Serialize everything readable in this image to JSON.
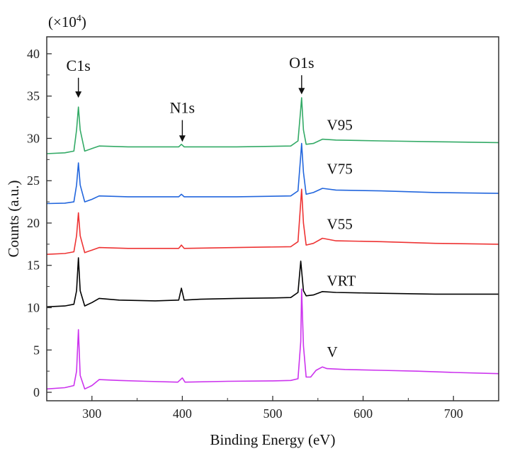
{
  "chart_data": {
    "type": "line",
    "title": "",
    "xlabel": "Binding Energy  (eV)",
    "ylabel": "Counts (a.u.)",
    "y_multiplier": "(×10",
    "y_multiplier_exp": "4",
    "y_multiplier_close": ")",
    "xlim": [
      250,
      750
    ],
    "ylim": [
      -1,
      42
    ],
    "x_ticks": [
      300,
      400,
      500,
      600,
      700
    ],
    "y_ticks": [
      0,
      5,
      10,
      15,
      20,
      25,
      30,
      35,
      40
    ],
    "grid": false,
    "peak_annotations": [
      {
        "label": "C1s",
        "x": 285,
        "y": 38.0,
        "arrow_to": 34.8
      },
      {
        "label": "N1s",
        "x": 400,
        "y": 33.0,
        "arrow_to": 29.6
      },
      {
        "label": "O1s",
        "x": 532,
        "y": 38.3,
        "arrow_to": 35.2
      }
    ],
    "series": [
      {
        "name": "V",
        "color": "#cc33ee",
        "label_x": 560,
        "label_y": 4.2,
        "points": [
          [
            250,
            0.4
          ],
          [
            270,
            0.55
          ],
          [
            280,
            0.8
          ],
          [
            283,
            2.5
          ],
          [
            285,
            7.4
          ],
          [
            287,
            2.0
          ],
          [
            292,
            0.4
          ],
          [
            300,
            0.8
          ],
          [
            308,
            1.5
          ],
          [
            330,
            1.4
          ],
          [
            360,
            1.3
          ],
          [
            395,
            1.2
          ],
          [
            400,
            1.7
          ],
          [
            403,
            1.2
          ],
          [
            450,
            1.3
          ],
          [
            500,
            1.35
          ],
          [
            520,
            1.4
          ],
          [
            528,
            1.6
          ],
          [
            531,
            6.0
          ],
          [
            532,
            12.2
          ],
          [
            534,
            5.5
          ],
          [
            537,
            1.8
          ],
          [
            542,
            1.8
          ],
          [
            548,
            2.6
          ],
          [
            555,
            3.0
          ],
          [
            560,
            2.8
          ],
          [
            580,
            2.7
          ],
          [
            620,
            2.6
          ],
          [
            660,
            2.5
          ],
          [
            700,
            2.35
          ],
          [
            750,
            2.2
          ]
        ]
      },
      {
        "name": "VRT",
        "color": "#000000",
        "label_x": 560,
        "label_y": 12.6,
        "points": [
          [
            250,
            10.1
          ],
          [
            270,
            10.2
          ],
          [
            280,
            10.4
          ],
          [
            283,
            12.0
          ],
          [
            285,
            15.9
          ],
          [
            287,
            12.0
          ],
          [
            292,
            10.2
          ],
          [
            300,
            10.6
          ],
          [
            308,
            11.1
          ],
          [
            330,
            10.9
          ],
          [
            370,
            10.8
          ],
          [
            396,
            10.9
          ],
          [
            399,
            12.3
          ],
          [
            402,
            10.9
          ],
          [
            420,
            11.0
          ],
          [
            460,
            11.1
          ],
          [
            500,
            11.15
          ],
          [
            520,
            11.2
          ],
          [
            528,
            11.8
          ],
          [
            531,
            15.5
          ],
          [
            534,
            12.0
          ],
          [
            537,
            11.4
          ],
          [
            545,
            11.5
          ],
          [
            555,
            11.9
          ],
          [
            570,
            11.8
          ],
          [
            620,
            11.7
          ],
          [
            680,
            11.6
          ],
          [
            750,
            11.6
          ]
        ]
      },
      {
        "name": "V55",
        "color": "#ee3333",
        "label_x": 560,
        "label_y": 19.3,
        "points": [
          [
            250,
            16.3
          ],
          [
            270,
            16.4
          ],
          [
            280,
            16.6
          ],
          [
            283,
            18.5
          ],
          [
            285,
            21.2
          ],
          [
            287,
            18.5
          ],
          [
            292,
            16.5
          ],
          [
            300,
            16.8
          ],
          [
            308,
            17.1
          ],
          [
            340,
            17.0
          ],
          [
            396,
            17.0
          ],
          [
            399,
            17.4
          ],
          [
            402,
            17.0
          ],
          [
            460,
            17.1
          ],
          [
            520,
            17.2
          ],
          [
            528,
            17.8
          ],
          [
            531,
            22.5
          ],
          [
            532,
            24.0
          ],
          [
            534,
            20.0
          ],
          [
            537,
            17.4
          ],
          [
            545,
            17.6
          ],
          [
            555,
            18.2
          ],
          [
            570,
            17.9
          ],
          [
            620,
            17.8
          ],
          [
            680,
            17.6
          ],
          [
            750,
            17.5
          ]
        ]
      },
      {
        "name": "V75",
        "color": "#2266dd",
        "label_x": 560,
        "label_y": 25.8,
        "points": [
          [
            250,
            22.3
          ],
          [
            270,
            22.35
          ],
          [
            280,
            22.5
          ],
          [
            283,
            24.5
          ],
          [
            285,
            27.1
          ],
          [
            287,
            24.5
          ],
          [
            292,
            22.5
          ],
          [
            300,
            22.8
          ],
          [
            308,
            23.2
          ],
          [
            340,
            23.1
          ],
          [
            396,
            23.1
          ],
          [
            399,
            23.4
          ],
          [
            402,
            23.1
          ],
          [
            460,
            23.1
          ],
          [
            520,
            23.2
          ],
          [
            528,
            23.8
          ],
          [
            531,
            28.0
          ],
          [
            532,
            29.4
          ],
          [
            534,
            26.0
          ],
          [
            537,
            23.4
          ],
          [
            545,
            23.6
          ],
          [
            555,
            24.1
          ],
          [
            570,
            23.9
          ],
          [
            620,
            23.8
          ],
          [
            680,
            23.6
          ],
          [
            750,
            23.5
          ]
        ]
      },
      {
        "name": "V95",
        "color": "#33aa66",
        "label_x": 560,
        "label_y": 31.0,
        "points": [
          [
            250,
            28.2
          ],
          [
            270,
            28.3
          ],
          [
            280,
            28.5
          ],
          [
            283,
            31.0
          ],
          [
            285,
            33.7
          ],
          [
            287,
            31.0
          ],
          [
            292,
            28.5
          ],
          [
            300,
            28.8
          ],
          [
            308,
            29.1
          ],
          [
            340,
            29.0
          ],
          [
            396,
            29.0
          ],
          [
            399,
            29.3
          ],
          [
            402,
            29.0
          ],
          [
            460,
            29.0
          ],
          [
            520,
            29.1
          ],
          [
            528,
            29.7
          ],
          [
            531,
            33.5
          ],
          [
            532,
            34.8
          ],
          [
            534,
            31.0
          ],
          [
            537,
            29.3
          ],
          [
            545,
            29.4
          ],
          [
            555,
            29.9
          ],
          [
            570,
            29.8
          ],
          [
            620,
            29.7
          ],
          [
            680,
            29.6
          ],
          [
            750,
            29.5
          ]
        ]
      }
    ]
  }
}
